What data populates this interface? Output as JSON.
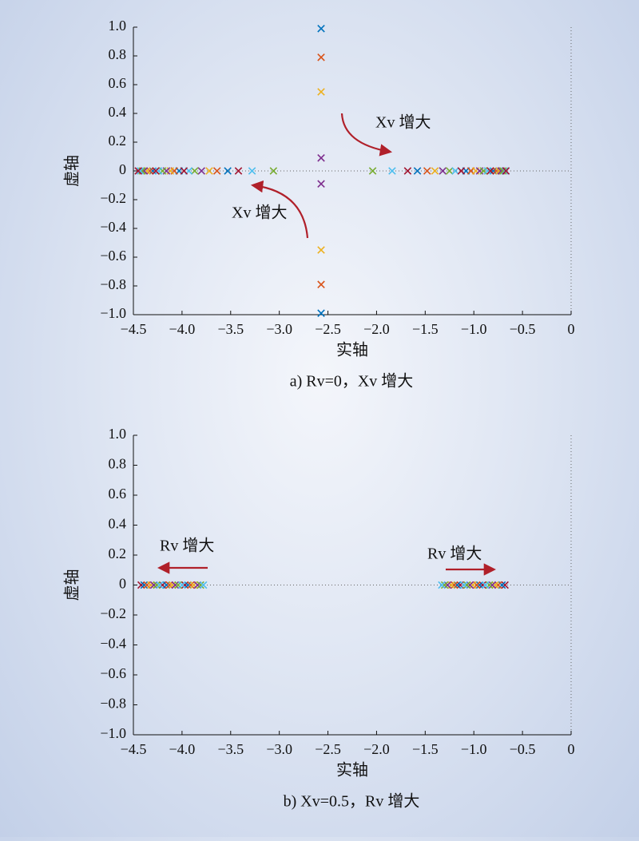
{
  "chart_data": [
    {
      "type": "scatter",
      "xlabel": "实轴",
      "ylabel": "虚轴",
      "caption": "a) Rv=0，Xv 增大",
      "annotations": [
        "Xv 增大",
        "Xv 增大"
      ],
      "xlim": [
        -4.5,
        0
      ],
      "ylim": [
        -1,
        1
      ],
      "xticks": [
        {
          "value": -4.5,
          "label": "−4.5"
        },
        {
          "value": -4,
          "label": "−4.0"
        },
        {
          "value": -3.5,
          "label": "−3.5"
        },
        {
          "value": -3,
          "label": "−3.0"
        },
        {
          "value": -2.5,
          "label": "−2.5"
        },
        {
          "value": -2,
          "label": "−2.0"
        },
        {
          "value": -1.5,
          "label": "−1.5"
        },
        {
          "value": -1,
          "label": "−1.0"
        },
        {
          "value": -0.5,
          "label": "−0.5"
        },
        0
      ],
      "yticks": [
        {
          "value": -1,
          "label": "−1.0"
        },
        {
          "value": -0.8,
          "label": "−0.8"
        },
        {
          "value": -0.6,
          "label": "−0.6"
        },
        {
          "value": -0.4,
          "label": "−0.4"
        },
        {
          "value": -0.2,
          "label": "−0.2"
        },
        0,
        0.2,
        0.4,
        0.6,
        0.8,
        {
          "value": 1,
          "label": "1.0"
        }
      ],
      "series": [
        {
          "color": "#0072BD",
          "x": [
            -2.57,
            -2.57,
            -3.53,
            -4.03,
            -4.3,
            -1.58,
            -1.08,
            -0.8
          ],
          "values": [
            0.99,
            -0.99,
            0,
            0,
            0,
            0,
            0,
            0
          ]
        },
        {
          "color": "#D95319",
          "x": [
            -2.57,
            -2.57,
            -3.64,
            -4.08,
            -4.33,
            -1.48,
            -1.03,
            -0.77
          ],
          "values": [
            0.79,
            -0.79,
            0,
            0,
            0,
            0,
            0,
            0
          ]
        },
        {
          "color": "#EDB120",
          "x": [
            -2.57,
            -2.57,
            -3.72,
            -4.12,
            -4.36,
            -1.4,
            -0.98,
            -0.74
          ],
          "values": [
            0.55,
            -0.55,
            0,
            0,
            0,
            0,
            0,
            0
          ]
        },
        {
          "color": "#7E2F8E",
          "x": [
            -2.57,
            -2.57,
            -3.8,
            -4.16,
            -4.39,
            -1.32,
            -0.94,
            -0.72
          ],
          "values": [
            0.09,
            -0.09,
            0,
            0,
            0,
            0,
            0,
            0
          ]
        },
        {
          "color": "#77AC30",
          "x": [
            -3.06,
            -3.87,
            -4.2,
            -4.41,
            -2.04,
            -1.25,
            -0.9,
            -0.7
          ],
          "values": [
            0,
            0,
            0,
            0,
            0,
            0,
            0,
            0
          ]
        },
        {
          "color": "#4DBEEE",
          "x": [
            -3.28,
            -3.93,
            -4.24,
            -4.43,
            -1.84,
            -1.19,
            -0.86,
            -0.68
          ],
          "values": [
            0,
            0,
            0,
            0,
            0,
            0,
            0,
            0
          ]
        },
        {
          "color": "#A2142F",
          "x": [
            -3.42,
            -3.98,
            -4.27,
            -4.45,
            -1.68,
            -1.13,
            -0.83,
            -0.67
          ],
          "values": [
            0,
            0,
            0,
            0,
            0,
            0,
            0,
            0
          ]
        }
      ]
    },
    {
      "type": "scatter",
      "xlabel": "实轴",
      "ylabel": "虚轴",
      "caption": "b) Xv=0.5，Rv 增大",
      "annotations": [
        "Rv 增大",
        "Rv 增大"
      ],
      "xlim": [
        -4.5,
        0
      ],
      "ylim": [
        -1,
        1
      ],
      "xticks": [
        {
          "value": -4.5,
          "label": "−4.5"
        },
        {
          "value": -4,
          "label": "−4.0"
        },
        {
          "value": -3.5,
          "label": "−3.5"
        },
        {
          "value": -3,
          "label": "−3.0"
        },
        {
          "value": -2.5,
          "label": "−2.5"
        },
        {
          "value": -2,
          "label": "−2.0"
        },
        {
          "value": -1.5,
          "label": "−1.5"
        },
        {
          "value": -1,
          "label": "−1.0"
        },
        {
          "value": -0.5,
          "label": "−0.5"
        },
        0
      ],
      "yticks": [
        {
          "value": -1,
          "label": "−1.0"
        },
        {
          "value": -0.8,
          "label": "−0.8"
        },
        {
          "value": -0.6,
          "label": "−0.6"
        },
        {
          "value": -0.4,
          "label": "−0.4"
        },
        {
          "value": -0.2,
          "label": "−0.2"
        },
        0,
        0.2,
        0.4,
        0.6,
        0.8,
        {
          "value": 1,
          "label": "1.0"
        }
      ],
      "series": [
        {
          "color": "#A2142F",
          "x": [
            -4.42,
            -4.2,
            -3.97,
            -0.68,
            -0.91,
            -1.14
          ],
          "values": [
            0,
            0,
            0,
            0,
            0,
            0
          ]
        },
        {
          "color": "#0072BD",
          "x": [
            -4.39,
            -4.16,
            -3.94,
            -0.71,
            -0.94,
            -1.17
          ],
          "values": [
            0,
            0,
            0,
            0,
            0,
            0
          ]
        },
        {
          "color": "#D95319",
          "x": [
            -4.36,
            -4.13,
            -3.91,
            -0.75,
            -0.97,
            -1.2
          ],
          "values": [
            0,
            0,
            0,
            0,
            0,
            0
          ]
        },
        {
          "color": "#EDB120",
          "x": [
            -4.32,
            -4.1,
            -3.88,
            -0.78,
            -1.01,
            -1.23
          ],
          "values": [
            0,
            0,
            0,
            0,
            0,
            0
          ]
        },
        {
          "color": "#7E2F8E",
          "x": [
            -4.29,
            -4.07,
            -3.84,
            -0.81,
            -1.04,
            -1.27
          ],
          "values": [
            0,
            0,
            0,
            0,
            0,
            0
          ]
        },
        {
          "color": "#77AC30",
          "x": [
            -4.26,
            -4.04,
            -3.81,
            -0.84,
            -1.07,
            -1.3
          ],
          "values": [
            0,
            0,
            0,
            0,
            0,
            0
          ]
        },
        {
          "color": "#4DBEEE",
          "x": [
            -4.23,
            -4.0,
            -3.78,
            -0.88,
            -1.1,
            -1.33
          ],
          "values": [
            0,
            0,
            0,
            0,
            0,
            0
          ]
        }
      ]
    }
  ]
}
